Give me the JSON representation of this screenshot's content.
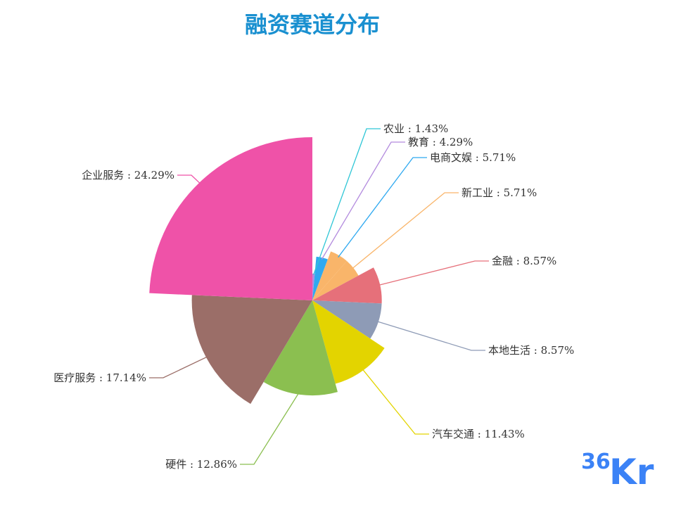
{
  "chart_data": {
    "type": "pie",
    "variant": "rose",
    "title": "融资赛道分布",
    "slices": [
      {
        "name": "农业",
        "value": 1.43,
        "label": "农业 : 1.43%",
        "color": "#b38bde"
      },
      {
        "name": "教育",
        "value": 4.29,
        "label": "教育 : 4.29%",
        "color": "#2fa9f0"
      },
      {
        "name": "电商文娱",
        "value": 5.71,
        "label": "电商文娱 : 5.71%",
        "color": "#f9b56a"
      },
      {
        "name": "新工业",
        "value": 5.71,
        "label": "新工业 : 5.71%",
        "color": "#f9b56a"
      },
      {
        "name": "金融",
        "value": 8.57,
        "label": "金融 : 8.57%",
        "color": "#e6707a"
      },
      {
        "name": "本地生活",
        "value": 8.57,
        "label": "本地生活 : 8.57%",
        "color": "#8e9bb6"
      },
      {
        "name": "汽车交通",
        "value": 11.43,
        "label": "汽车交通 : 11.43%",
        "color": "#e3d400"
      },
      {
        "name": "硬件",
        "value": 12.86,
        "label": "硬件 : 12.86%",
        "color": "#8bbf50"
      },
      {
        "name": "医疗服务",
        "value": 17.14,
        "label": "医疗服务 : 17.14%",
        "color": "#9b6e68"
      },
      {
        "name": "企业服务",
        "value": 24.29,
        "label": "企业服务 : 24.29%",
        "color": "#ef52a8"
      }
    ],
    "leader_colors": [
      "#2ec6d6",
      "#b38bde",
      "#2fa9f0",
      "#f9b56a",
      "#e6707a",
      "#8e9bb6",
      "#e3d400",
      "#8bbf50",
      "#9b6e68",
      "#ef52a8"
    ]
  },
  "logo": {
    "number": "36",
    "letters": "Kr",
    "color": "#3b82f6"
  }
}
